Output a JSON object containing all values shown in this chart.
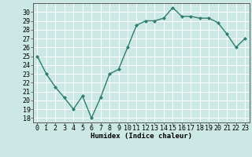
{
  "x": [
    0,
    1,
    2,
    3,
    4,
    5,
    6,
    7,
    8,
    9,
    10,
    11,
    12,
    13,
    14,
    15,
    16,
    17,
    18,
    19,
    20,
    21,
    22,
    23
  ],
  "y": [
    25,
    23,
    21.5,
    20.3,
    19,
    20.5,
    18,
    20.3,
    23,
    23.5,
    26,
    28.5,
    29,
    29,
    29.3,
    30.5,
    29.5,
    29.5,
    29.3,
    29.3,
    28.8,
    27.5,
    26,
    27
  ],
  "line_color": "#2e7d6e",
  "marker": "D",
  "marker_size": 2.0,
  "bg_color": "#cce8e4",
  "grid_color": "#ffffff",
  "xlabel": "Humidex (Indice chaleur)",
  "xlabel_fontsize": 6.5,
  "ylabel_ticks": [
    18,
    19,
    20,
    21,
    22,
    23,
    24,
    25,
    26,
    27,
    28,
    29,
    30
  ],
  "xlim": [
    -0.5,
    23.5
  ],
  "ylim": [
    17.5,
    31.0
  ],
  "tick_fontsize": 6.0,
  "line_width": 1.0
}
